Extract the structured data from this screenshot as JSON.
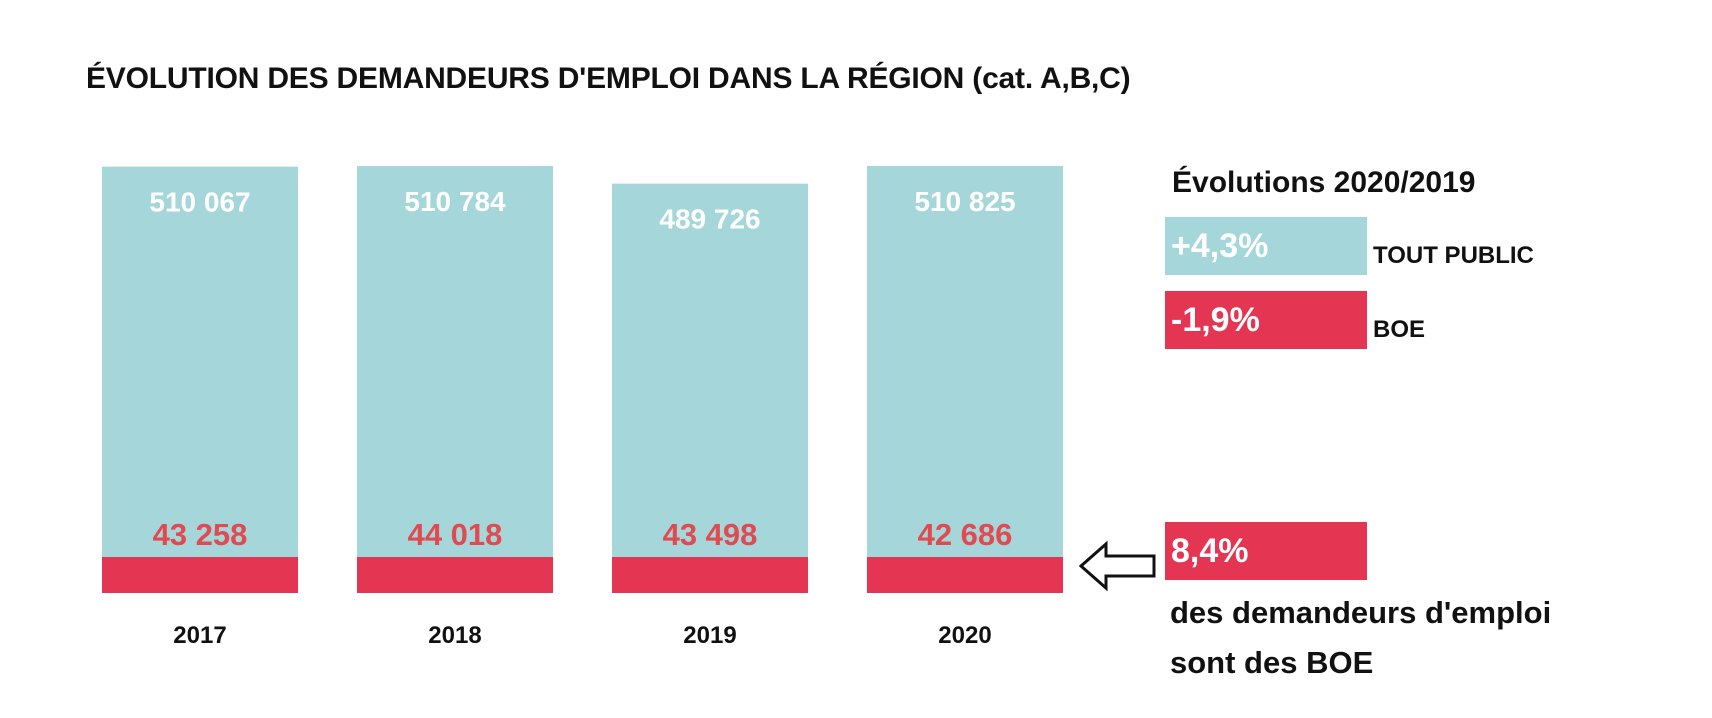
{
  "chart_data": {
    "type": "bar",
    "title": "ÉVOLUTION DES DEMANDEURS D'EMPLOI DANS LA RÉGION (cat. A,B,C)",
    "categories": [
      "2017",
      "2018",
      "2019",
      "2020"
    ],
    "series": [
      {
        "name": "TOUT PUBLIC",
        "values": [
          510067,
          510784,
          489726,
          510825
        ],
        "labels": [
          "510 067",
          "510 784",
          "489 726",
          "510 825"
        ]
      },
      {
        "name": "BOE",
        "values": [
          43258,
          44018,
          43498,
          42686
        ],
        "labels": [
          "43 258",
          "44 018",
          "43 498",
          "42 686"
        ]
      }
    ],
    "colors": {
      "tout_public": "#a5d7da",
      "boe": "#e43552",
      "boe_label": "#e04a50",
      "total_label": "#ffffff"
    }
  },
  "legend": {
    "title": "Évolutions 2020/2019",
    "tout_public_change": "+4,3%",
    "tout_public_label": "TOUT PUBLIC",
    "boe_change": "-1,9%",
    "boe_label": "BOE"
  },
  "share": {
    "value": "8,4%",
    "line1": "des demandeurs d'emploi",
    "line2": "sont des BOE",
    "icon": "left-arrow-icon"
  }
}
